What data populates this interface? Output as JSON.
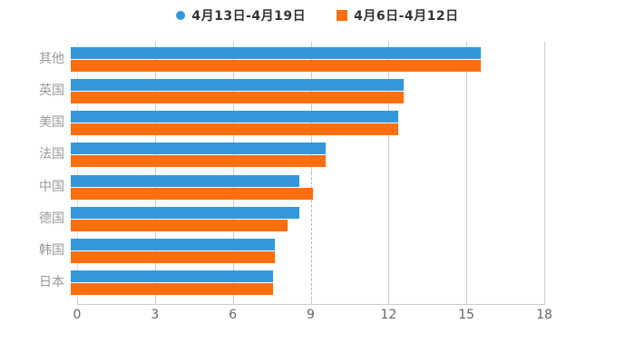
{
  "legend": {
    "items": [
      {
        "label": "4月13日-4月19日",
        "shape": "circle",
        "color": "#3398db"
      },
      {
        "label": "4月6日-4月12日",
        "shape": "square",
        "color": "#ff6e0d"
      }
    ]
  },
  "chart_data": {
    "type": "bar",
    "orientation": "horizontal",
    "title": "",
    "xlabel": "",
    "ylabel": "",
    "categories": [
      "其他",
      "英国",
      "美国",
      "法国",
      "中国",
      "德国",
      "韩国",
      "日本"
    ],
    "series": [
      {
        "name": "4月13日-4月19日",
        "color": "#3398db",
        "values": [
          15.6,
          12.65,
          12.45,
          9.7,
          8.7,
          8.7,
          7.75,
          7.7
        ]
      },
      {
        "name": "4月6日-4月12日",
        "color": "#ff6e0d",
        "values": [
          15.6,
          12.65,
          12.45,
          9.7,
          9.2,
          8.25,
          7.75,
          7.7
        ]
      }
    ],
    "xlim": [
      0,
      18
    ],
    "xticks": [
      0,
      3,
      6,
      9,
      12,
      15,
      18
    ],
    "xtick_labels": [
      "0",
      "3",
      "6",
      "9",
      "12",
      "15",
      "18"
    ],
    "grid": true,
    "legend_position": "top",
    "dashed_pointer_at": 9
  },
  "colors": {
    "background": "#ffffff",
    "gridline": "#cccccc",
    "axis_line": "#cccccc",
    "tick_label": "#666666",
    "category_label": "#999999",
    "legend_text": "#333333"
  }
}
